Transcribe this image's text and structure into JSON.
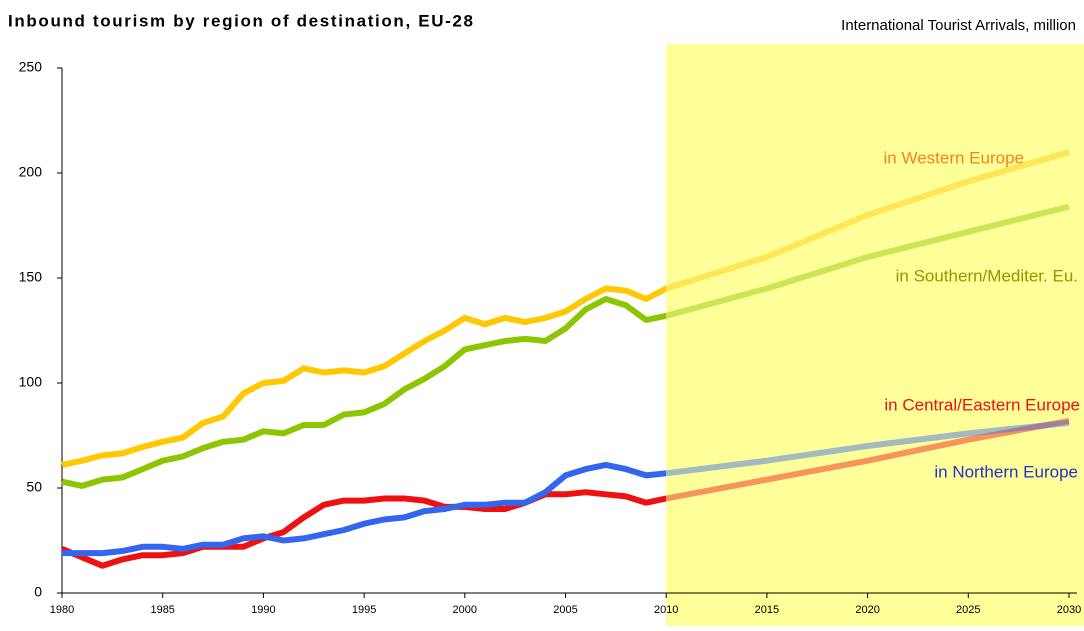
{
  "chart_data": {
    "type": "line",
    "title": "Inbound tourism by region of destination, EU-28",
    "subtitle": "International Tourist Arrivals, million",
    "x": [
      1980,
      1981,
      1982,
      1983,
      1984,
      1985,
      1986,
      1987,
      1988,
      1989,
      1990,
      1991,
      1992,
      1993,
      1994,
      1995,
      1996,
      1997,
      1998,
      1999,
      2000,
      2001,
      2002,
      2003,
      2004,
      2005,
      2006,
      2007,
      2008,
      2009,
      2010,
      2015,
      2020,
      2025,
      2030
    ],
    "xlim": [
      1980,
      2030
    ],
    "xticks": [
      1980,
      1985,
      1990,
      1995,
      2000,
      2005,
      2010,
      2015,
      2020,
      2025,
      2030
    ],
    "ylim": [
      0,
      250
    ],
    "yticks": [
      0,
      50,
      100,
      150,
      200,
      250
    ],
    "forecast_start": 2010,
    "forecast_color": "#ffff99",
    "series": [
      {
        "name": "in Western Europe",
        "color": "#ffc800",
        "label_color": "#f58220",
        "values": [
          61,
          63,
          65.5,
          66.5,
          69.5,
          72,
          74,
          81,
          84,
          95,
          100,
          101,
          107,
          105,
          106,
          105,
          108,
          114,
          120,
          125,
          131,
          128,
          131,
          129,
          131,
          134,
          140,
          145,
          144,
          140,
          145,
          160,
          180,
          196,
          210
        ]
      },
      {
        "name": "in Southern/Mediter. Eu.",
        "color": "#8cc600",
        "label_color": "#8c9a00",
        "values": [
          53,
          51,
          54,
          55,
          59,
          63,
          65,
          69,
          72,
          73,
          77,
          76,
          80,
          80,
          85,
          86,
          90,
          97,
          102,
          108,
          116,
          118,
          120,
          121,
          120,
          126,
          135,
          140,
          137,
          130,
          132,
          145,
          160,
          172,
          184
        ]
      },
      {
        "name": "in Central/Eastern Europe",
        "color": "#ee1111",
        "label_color": "#ee1111",
        "values": [
          21,
          17,
          13,
          16,
          18,
          18,
          19,
          22,
          22,
          22,
          26,
          29,
          36,
          42,
          44,
          44,
          45,
          45,
          44,
          41,
          41,
          40,
          40,
          43,
          47,
          47,
          48,
          47,
          46,
          43,
          45,
          54,
          63,
          73,
          82
        ]
      },
      {
        "name": "in Northern Europe",
        "color": "#3366ee",
        "label_color": "#2233cc",
        "values": [
          19,
          19,
          19,
          20,
          22,
          22,
          21,
          23,
          23,
          26,
          27,
          25,
          26,
          28,
          30,
          33,
          35,
          36,
          39,
          40,
          42,
          42,
          43,
          43,
          48,
          56,
          59,
          61,
          59,
          56,
          57,
          63,
          70,
          76,
          81
        ]
      }
    ]
  }
}
